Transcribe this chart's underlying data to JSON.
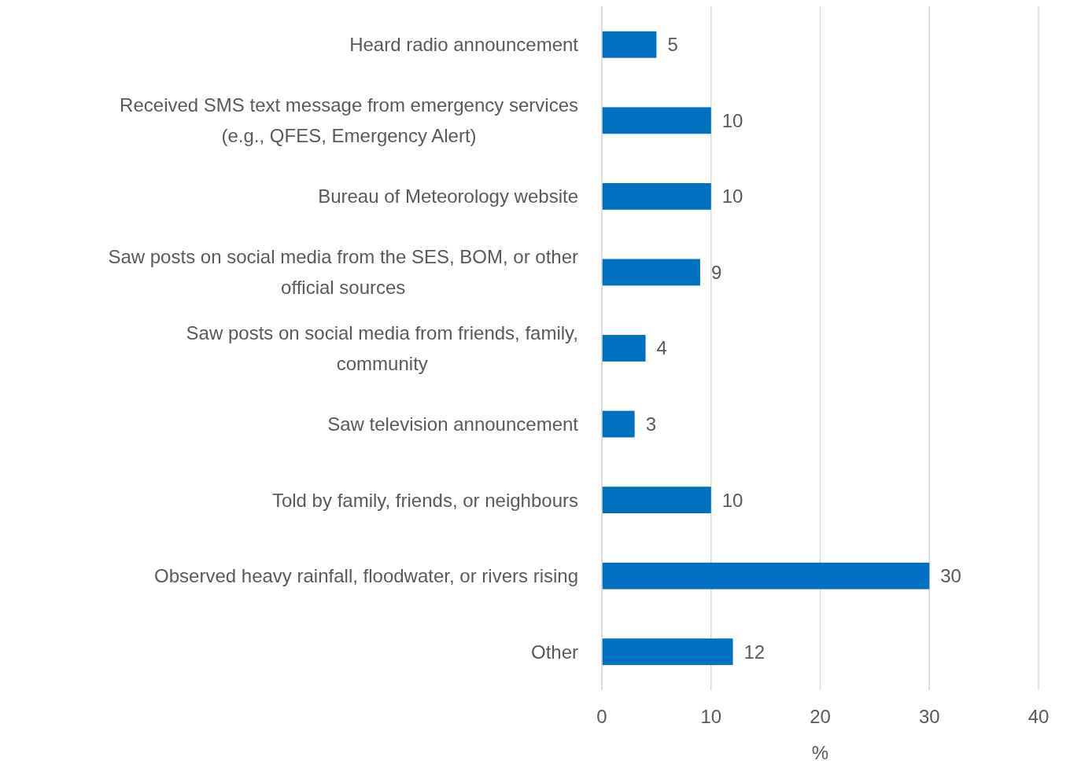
{
  "chart_data": {
    "type": "bar",
    "orientation": "horizontal",
    "xlabel": "%",
    "categories": [
      "Heard radio announcement",
      "Received SMS text message from emergency services (e.g., QFES, Emergency Alert)",
      "Bureau of Meteorology website",
      "Saw posts on social media from the SES, BOM, or other official sources",
      "Saw posts on social media from friends, family, community",
      "Saw television announcement",
      "Told by family, friends, or neighbours",
      "Observed heavy rainfall, floodwater, or rivers rising",
      "Other"
    ],
    "values": [
      5,
      10,
      10,
      9,
      4,
      3,
      10,
      30,
      12
    ],
    "color": "#0070c0",
    "xlim": [
      0,
      40
    ],
    "xticks": [
      0,
      10,
      20,
      30,
      40
    ],
    "grid": "x",
    "data_labels": true
  }
}
